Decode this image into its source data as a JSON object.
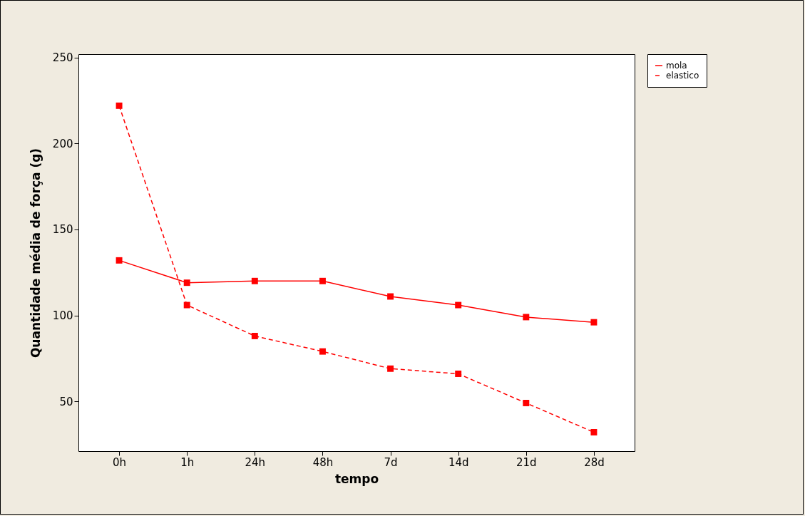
{
  "chart_data": {
    "type": "line",
    "xlabel": "tempo",
    "ylabel": "Quantidade média de força (g)",
    "categories": [
      "0h",
      "1h",
      "24h",
      "48h",
      "7d",
      "14d",
      "21d",
      "28d"
    ],
    "series": [
      {
        "name": "mola",
        "color": "#ff0000",
        "line_style": "solid",
        "values": [
          132,
          119,
          120,
          120,
          111,
          106,
          99,
          96
        ]
      },
      {
        "name": "elastico",
        "color": "#ff0000",
        "line_style": "dashed",
        "values": [
          222,
          106,
          88,
          79,
          69,
          66,
          49,
          32
        ]
      }
    ],
    "ylim": [
      21,
      252
    ],
    "yticks": [
      50,
      100,
      150,
      200,
      250
    ],
    "grid": false,
    "legend": "top right",
    "marker": "square"
  }
}
